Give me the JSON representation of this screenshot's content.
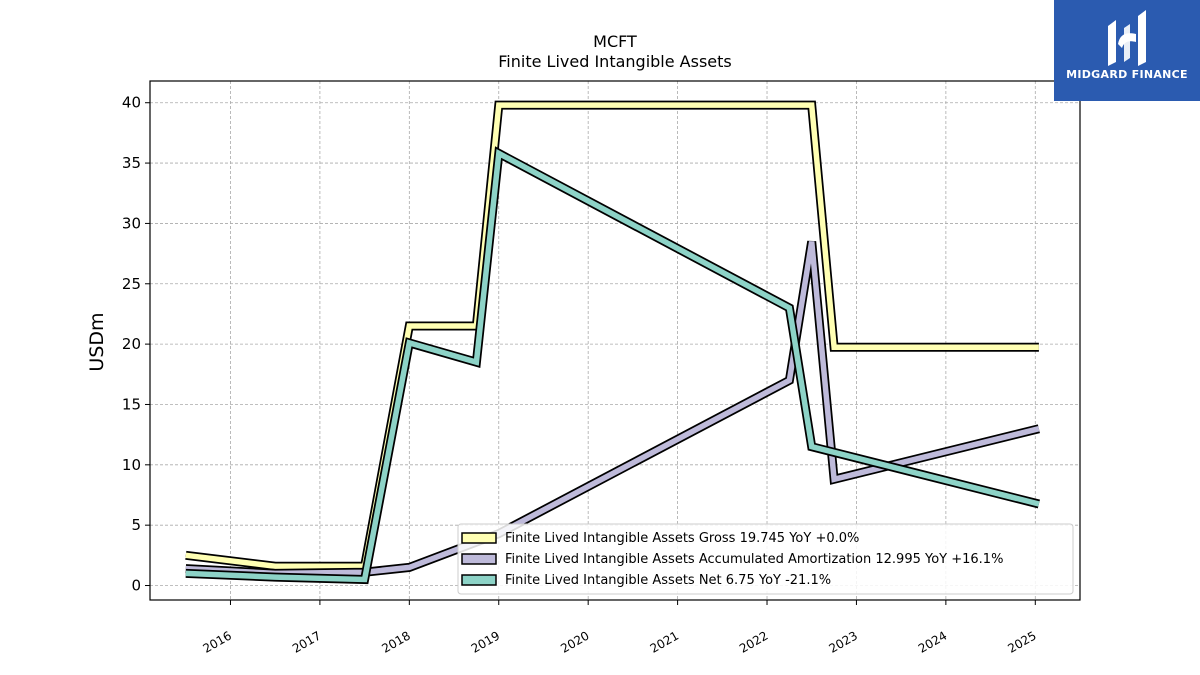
{
  "chart_data": {
    "type": "line",
    "title": "MCFT",
    "subtitle": "Finite Lived Intangible Assets",
    "xlabel": "",
    "ylabel": "USDm",
    "ylim": [
      -1.2,
      41.8
    ],
    "xlim": [
      2015.1,
      2025.5
    ],
    "yticks": [
      0,
      5,
      10,
      15,
      20,
      25,
      30,
      35,
      40
    ],
    "xticks": [
      2016,
      2017,
      2018,
      2019,
      2020,
      2021,
      2022,
      2023,
      2024,
      2025
    ],
    "grid": true,
    "legend_position": "bottom-right",
    "series": [
      {
        "name": "Finite Lived Intangible Assets Gross",
        "legend": "Finite Lived Intangible Assets Gross  19.745 YoY +0.0%",
        "color": "#ffffb3",
        "points": [
          [
            2015.5,
            2.5
          ],
          [
            2016.5,
            1.6
          ],
          [
            2017.5,
            1.6
          ],
          [
            2018.0,
            21.5
          ],
          [
            2018.75,
            21.5
          ],
          [
            2019.0,
            39.8
          ],
          [
            2022.5,
            39.8
          ],
          [
            2022.75,
            19.745
          ],
          [
            2025.04,
            19.745
          ]
        ]
      },
      {
        "name": "Finite Lived Intangible Assets Accumulated Amortization",
        "legend": "Finite Lived Intangible Assets Accumulated Amortization  12.995 YoY +16.1%",
        "color": "#bebada",
        "points": [
          [
            2015.5,
            1.4
          ],
          [
            2016.5,
            1.0
          ],
          [
            2017.5,
            1.1
          ],
          [
            2018.0,
            1.5
          ],
          [
            2019.0,
            4.3
          ],
          [
            2022.25,
            17.0
          ],
          [
            2022.5,
            28.5
          ],
          [
            2022.75,
            8.8
          ],
          [
            2025.04,
            12.995
          ]
        ]
      },
      {
        "name": "Finite Lived Intangible Assets Net",
        "legend": "Finite Lived Intangible Assets Net  6.75 YoY -21.1%",
        "color": "#8dd3c7",
        "points": [
          [
            2015.5,
            1.0
          ],
          [
            2016.5,
            0.7
          ],
          [
            2017.5,
            0.5
          ],
          [
            2018.0,
            20.1
          ],
          [
            2018.75,
            18.5
          ],
          [
            2019.0,
            35.8
          ],
          [
            2022.25,
            23.0
          ],
          [
            2022.5,
            11.5
          ],
          [
            2025.04,
            6.75
          ]
        ]
      }
    ]
  },
  "logo": {
    "text": "MIDGARD FINANCE",
    "color": "#2b5bb0"
  }
}
